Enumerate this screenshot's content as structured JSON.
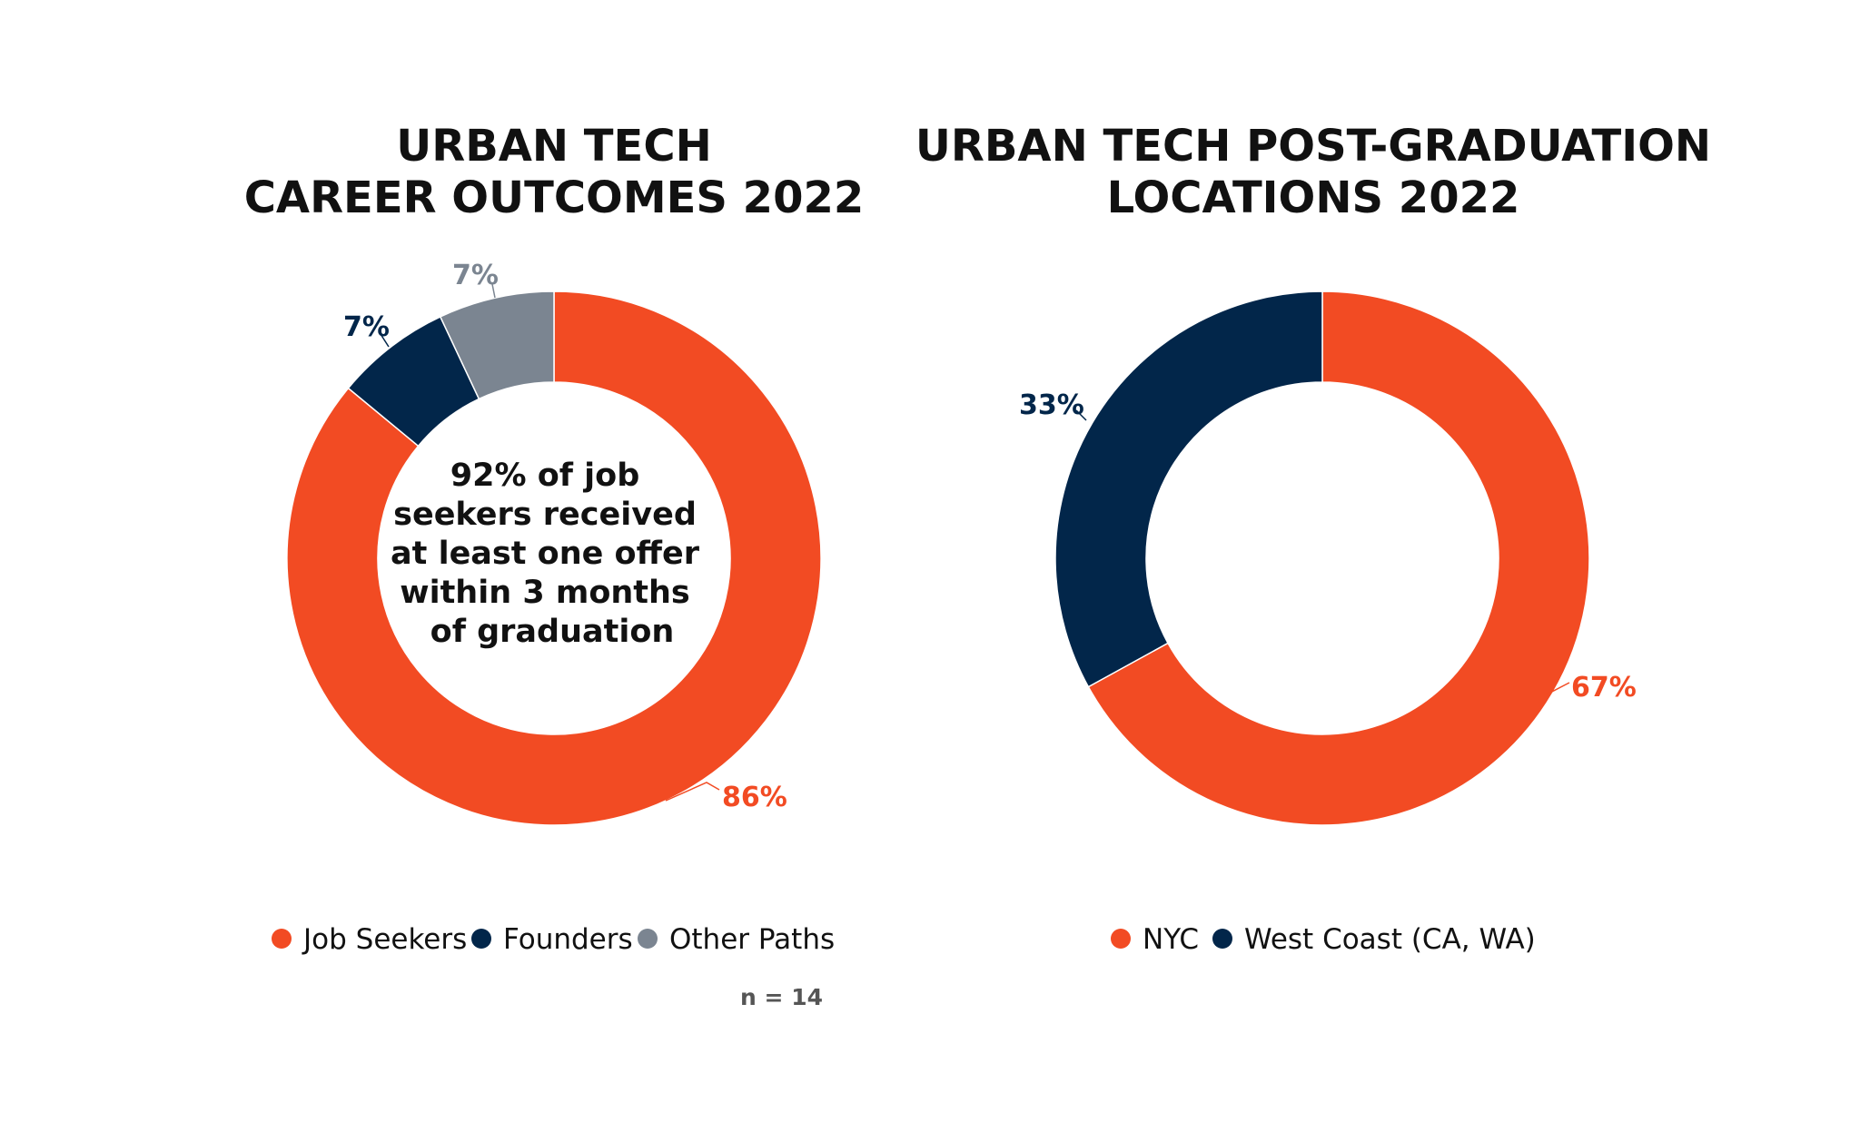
{
  "chart_data": [
    {
      "type": "pie",
      "title": [
        "URBAN TECH",
        "CAREER OUTCOMES 2022"
      ],
      "center_text": [
        "92% of job",
        "seekers received",
        "at least one offer",
        "within 3 months",
        "of graduation"
      ],
      "categories": [
        "Job Seekers",
        "Founders",
        "Other Paths"
      ],
      "values": [
        86,
        7,
        7
      ],
      "data_labels": [
        "86%",
        "7%",
        "7%"
      ],
      "colors": [
        "#f24b23",
        "#02264a",
        "#7b8591"
      ],
      "legend": [
        "Job Seekers",
        "Founders",
        "Other Paths"
      ],
      "legend_placement": "bottom",
      "note": "n = 14"
    },
    {
      "type": "pie",
      "title": [
        "URBAN TECH POST-GRADUATION",
        "LOCATIONS 2022"
      ],
      "categories": [
        "NYC",
        "West Coast (CA, WA)"
      ],
      "values": [
        67,
        33
      ],
      "data_labels": [
        "67%",
        "33%"
      ],
      "colors": [
        "#f24b23",
        "#02264a"
      ],
      "legend": [
        "NYC",
        "West Coast (CA, WA)"
      ],
      "legend_placement": "bottom"
    }
  ]
}
